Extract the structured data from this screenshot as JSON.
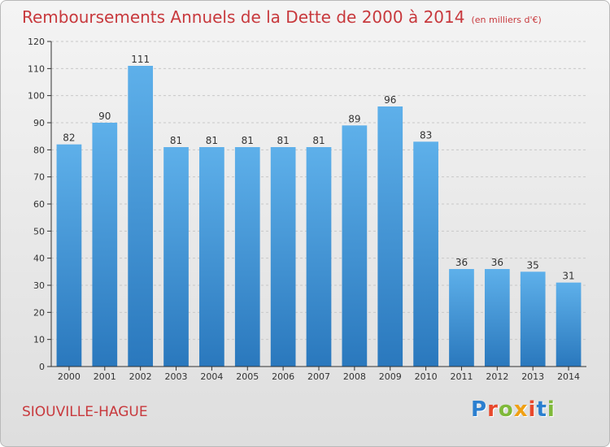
{
  "header": {
    "title": "Remboursements Annuels de la Dette de 2000 à 2014",
    "unit": "(en milliers d'€)"
  },
  "footer": {
    "commune": "SIOUVILLE-HAGUE",
    "logo": {
      "letters": [
        "P",
        "r",
        "o",
        "x",
        "i",
        "t",
        "i"
      ],
      "colors": [
        "#2b7fd0",
        "#e8482c",
        "#7fb93a",
        "#f0a013",
        "#e8482c",
        "#2b7fd0",
        "#7fb93a"
      ]
    }
  },
  "colors": {
    "bar_top": "#5eb0ea",
    "bar_bottom": "#2a78bd",
    "axis": "#333333",
    "grid": "#c8c8c8"
  },
  "chart_data": {
    "type": "bar",
    "title": "Remboursements Annuels de la Dette de 2000 à 2014",
    "categories": [
      "2000",
      "2001",
      "2002",
      "2003",
      "2004",
      "2005",
      "2006",
      "2007",
      "2008",
      "2009",
      "2010",
      "2011",
      "2012",
      "2013",
      "2014"
    ],
    "values": [
      82,
      90,
      111,
      81,
      81,
      81,
      81,
      81,
      89,
      96,
      83,
      36,
      36,
      35,
      31
    ],
    "ylim": [
      0,
      120
    ],
    "yticks": [
      0,
      10,
      20,
      30,
      40,
      50,
      60,
      70,
      80,
      90,
      100,
      110,
      120
    ],
    "grid": true,
    "data_labels": true
  }
}
